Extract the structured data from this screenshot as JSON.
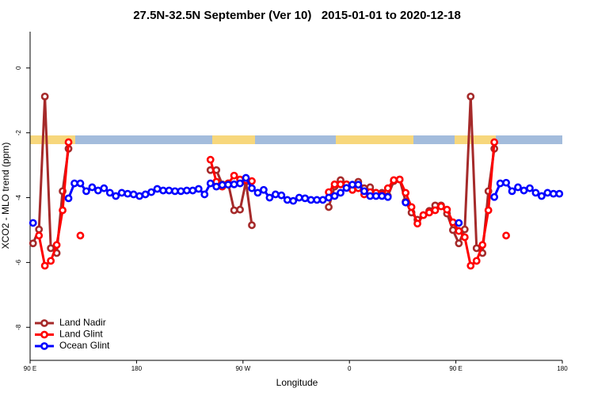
{
  "chart_data": {
    "type": "line",
    "title": "27.5N-32.5N September (Ver 10)   2015-01-01 to 2020-12-18",
    "xlabel": "Longitude",
    "ylabel": "XCO2 - MLO trend (ppm)",
    "x": [
      92.5,
      97.5,
      102.5,
      107.5,
      112.5,
      117.5,
      122.5,
      127.5,
      132.5,
      137.5,
      142.5,
      147.5,
      152.5,
      157.5,
      162.5,
      167.5,
      172.5,
      177.5,
      182.5,
      187.5,
      192.5,
      197.5,
      202.5,
      207.5,
      212.5,
      217.5,
      222.5,
      227.5,
      232.5,
      237.5,
      242.5,
      247.5,
      252.5,
      257.5,
      262.5,
      267.5,
      272.5,
      277.5,
      282.5,
      287.5,
      292.5,
      297.5,
      302.5,
      307.5,
      312.5,
      317.5,
      322.5,
      327.5,
      332.5,
      337.5,
      342.5,
      347.5,
      352.5,
      357.5,
      362.5,
      367.5,
      372.5,
      377.5,
      382.5,
      387.5,
      392.5,
      397.5,
      402.5,
      407.5,
      412.5,
      417.5,
      422.5,
      427.5,
      432.5,
      437.5,
      442.5,
      447.5,
      452.5,
      457.5,
      462.5,
      467.5,
      472.5,
      477.5,
      482.5,
      487.5,
      492.5,
      497.5,
      502.5,
      507.5,
      512.5,
      517.5,
      522.5,
      527.5,
      532.5,
      537.5
    ],
    "series": [
      {
        "name": "Land Nadir",
        "color": "#a52a2a",
        "values": [
          -5.41,
          -4.98,
          -0.88,
          -5.56,
          -5.71,
          -3.8,
          -2.49,
          null,
          null,
          null,
          null,
          null,
          null,
          null,
          null,
          null,
          null,
          null,
          null,
          null,
          null,
          null,
          null,
          null,
          null,
          null,
          null,
          null,
          null,
          null,
          -3.15,
          -3.15,
          -3.59,
          -3.56,
          -4.39,
          -4.37,
          -3.51,
          -4.85,
          null,
          null,
          null,
          null,
          null,
          null,
          null,
          null,
          null,
          null,
          null,
          null,
          -4.29,
          -3.66,
          -3.46,
          -3.59,
          -3.76,
          -3.51,
          -3.71,
          -3.68,
          -3.85,
          -3.85,
          -3.95,
          -3.49,
          -3.44,
          -4.12,
          -4.46,
          -4.68,
          -4.54,
          -4.41,
          -4.24,
          -4.24,
          -4.49,
          -5.0,
          -5.41,
          -4.98,
          -0.88,
          -5.56,
          -5.71,
          -3.8,
          -2.49,
          null,
          null,
          null,
          null,
          null,
          null,
          null,
          null,
          null,
          null,
          null
        ]
      },
      {
        "name": "Land Glint",
        "color": "#ff0000",
        "values": [
          null,
          -5.17,
          -6.1,
          -5.95,
          -5.46,
          -4.39,
          -2.29,
          null,
          -5.17,
          null,
          null,
          null,
          null,
          null,
          null,
          null,
          null,
          null,
          null,
          null,
          null,
          null,
          null,
          null,
          null,
          null,
          null,
          null,
          null,
          null,
          -2.83,
          -3.51,
          -3.66,
          -3.56,
          -3.32,
          -3.44,
          -3.46,
          -3.49,
          null,
          null,
          null,
          null,
          null,
          null,
          null,
          null,
          null,
          null,
          null,
          null,
          -3.83,
          -3.59,
          -3.59,
          -3.59,
          -3.76,
          -3.71,
          -3.9,
          -3.83,
          -3.85,
          -3.9,
          -3.71,
          -3.46,
          -3.44,
          -3.85,
          -4.29,
          -4.8,
          -4.54,
          -4.46,
          -4.39,
          -4.27,
          -4.37,
          -4.76,
          -5.03,
          -5.22,
          -6.1,
          -5.95,
          -5.46,
          -4.39,
          -2.29,
          null,
          -5.17,
          null,
          null,
          null,
          null,
          null,
          null,
          null,
          null,
          null
        ]
      },
      {
        "name": "Ocean Glint",
        "color": "#0000ff",
        "values": [
          -4.78,
          null,
          null,
          null,
          null,
          null,
          -4.02,
          -3.56,
          -3.56,
          -3.8,
          -3.68,
          -3.78,
          -3.71,
          -3.85,
          -3.95,
          -3.85,
          -3.88,
          -3.9,
          -3.95,
          -3.9,
          -3.83,
          -3.73,
          -3.78,
          -3.78,
          -3.8,
          -3.8,
          -3.78,
          -3.78,
          -3.73,
          -3.9,
          -3.56,
          -3.66,
          -3.61,
          -3.6,
          -3.59,
          -3.56,
          -3.39,
          -3.71,
          -3.85,
          -3.76,
          -4.0,
          -3.9,
          -3.93,
          -4.07,
          -4.1,
          -4.0,
          -4.02,
          -4.07,
          -4.07,
          -4.07,
          -4.0,
          -3.95,
          -3.85,
          -3.7,
          -3.6,
          -3.6,
          -3.8,
          -3.95,
          -3.95,
          -3.95,
          -3.98,
          null,
          null,
          -4.15,
          null,
          null,
          null,
          null,
          null,
          null,
          null,
          null,
          -4.78,
          null,
          null,
          null,
          null,
          null,
          -3.98,
          -3.56,
          -3.54,
          -3.8,
          -3.68,
          -3.78,
          -3.71,
          -3.85,
          -3.95,
          -3.85,
          -3.88,
          -3.88
        ]
      }
    ],
    "xlim": [
      90,
      540
    ],
    "xticks": [
      {
        "value": 90,
        "label": "90 E"
      },
      180,
      {
        "value": 270,
        "label": "90 W"
      },
      {
        "value": 360,
        "label": "0"
      },
      {
        "value": 450,
        "label": "90 E"
      },
      {
        "value": 540,
        "label": "180"
      }
    ],
    "ylim": [
      -9.02,
      1.12
    ],
    "yticks": [
      0,
      -2,
      -4,
      -6,
      -8
    ],
    "legend": "bottom-left"
  }
}
